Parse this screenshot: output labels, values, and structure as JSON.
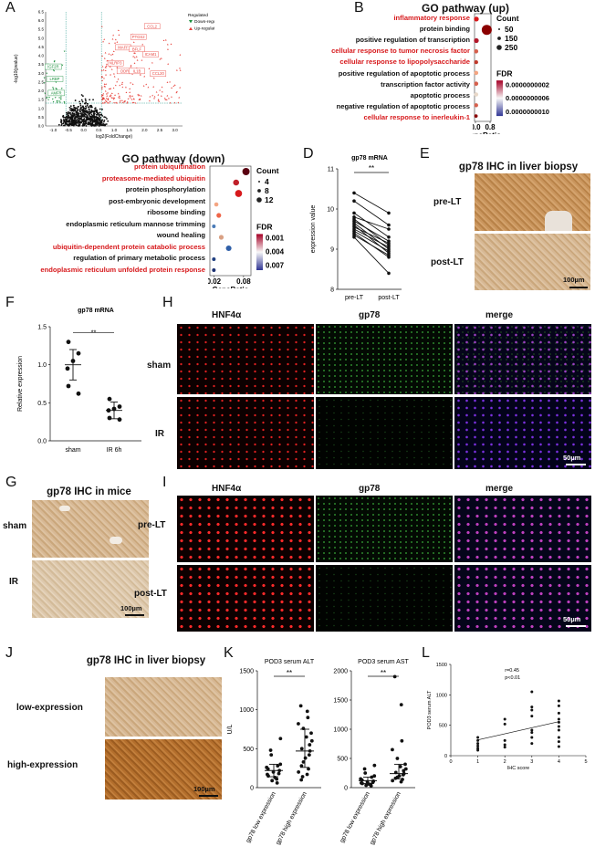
{
  "panels": {
    "A": "A",
    "B": "B",
    "C": "C",
    "D": "D",
    "E": "E",
    "F": "F",
    "G": "G",
    "H": "H",
    "I": "I",
    "J": "J",
    "K": "K",
    "L": "L"
  },
  "volcano": {
    "ylabel": "-log10(pvalue)",
    "xlabel": "log2(FoldChange)",
    "legend_title": "Regulated",
    "legend_down": "Down-regulated",
    "legend_up": "Up-regulated",
    "colors": {
      "down": "#1a8f3c",
      "up": "#e8403a",
      "ns": "#111111"
    },
    "x_ticks": [
      "-1.0",
      "-0.5",
      "0.0",
      "0.5",
      "1.0",
      "1.5",
      "2.0",
      "2.5",
      "3.0"
    ],
    "y_ticks": [
      "0.0",
      "0.5",
      "1.0",
      "1.5",
      "2.0",
      "2.5",
      "3.0",
      "3.5",
      "4.0",
      "4.5",
      "5.0",
      "5.5",
      "6.0",
      "6.5"
    ],
    "down_genes": [
      "IGF2R",
      "LRBP",
      "AMFR"
    ],
    "up_genes": [
      "CCL2",
      "PTGS2",
      "MAFF",
      "BFLF",
      "ICAM1",
      "NLRP3",
      "DDR",
      "IL1B",
      "CCL20"
    ]
  },
  "go_up": {
    "title": "GO pathway (up)",
    "terms": [
      {
        "label": "inflammatory response",
        "highlight": true,
        "ratio": 0.05,
        "count": 60,
        "fdr_color": "#d7191c"
      },
      {
        "label": "protein binding",
        "highlight": false,
        "ratio": 0.62,
        "count": 260,
        "fdr_color": "#8b0000"
      },
      {
        "label": "positive regulation of transcription",
        "highlight": false,
        "ratio": 0.05,
        "count": 60,
        "fdr_color": "#b2182b"
      },
      {
        "label": "cellular response to tumor necrosis factor",
        "highlight": true,
        "ratio": 0.04,
        "count": 45,
        "fdr_color": "#d6604d"
      },
      {
        "label": "cellular response to lipopolysaccharide",
        "highlight": true,
        "ratio": 0.04,
        "count": 40,
        "fdr_color": "#c0392b"
      },
      {
        "label": "positive regulation of apoptotic process",
        "highlight": false,
        "ratio": 0.04,
        "count": 45,
        "fdr_color": "#f4a582"
      },
      {
        "label": "transcription factor activity",
        "highlight": false,
        "ratio": 0.04,
        "count": 45,
        "fdr_color": "#d6604d"
      },
      {
        "label": "apoptotic process",
        "highlight": false,
        "ratio": 0.04,
        "count": 45,
        "fdr_color": "#e8d8c8"
      },
      {
        "label": "negative regulation of apoptotic process",
        "highlight": false,
        "ratio": 0.04,
        "count": 40,
        "fdr_color": "#d6604d"
      },
      {
        "label": "cellular response to inerleukin-1",
        "highlight": true,
        "ratio": 0.03,
        "count": 30,
        "fdr_color": "#8b0000"
      }
    ],
    "count_title": "Count",
    "count_levels": [
      "50",
      "150",
      "250"
    ],
    "fdr_title": "FDR",
    "fdr_levels": [
      "0.0000000002",
      "0.0000000006",
      "0.0000000010"
    ],
    "xlabel": "GeneRatio",
    "x_ticks": [
      "0.0",
      "0.8"
    ]
  },
  "go_down": {
    "title": "GO pathway (down)",
    "terms": [
      {
        "label": "protein ubiquitination",
        "highlight": true,
        "ratio": 0.085,
        "count": 12,
        "fdr_color": "#5a0010"
      },
      {
        "label": "proteasome-mediated ubiquitin",
        "highlight": true,
        "ratio": 0.065,
        "count": 8,
        "fdr_color": "#c0202a"
      },
      {
        "label": "protein phosphorylation",
        "highlight": false,
        "ratio": 0.07,
        "count": 11,
        "fdr_color": "#d7191c"
      },
      {
        "label": "post-embryonic development",
        "highlight": false,
        "ratio": 0.025,
        "count": 4,
        "fdr_color": "#f4a582"
      },
      {
        "label": "ribosome binding",
        "highlight": false,
        "ratio": 0.03,
        "count": 5,
        "fdr_color": "#ef6548"
      },
      {
        "label": "endoplasmic reticulum mannose trimming",
        "highlight": false,
        "ratio": 0.02,
        "count": 3,
        "fdr_color": "#4a7bb7"
      },
      {
        "label": "wound healing",
        "highlight": false,
        "ratio": 0.035,
        "count": 5,
        "fdr_color": "#d9a084"
      },
      {
        "label": "ubiquitin-dependent protein catabolic process",
        "highlight": true,
        "ratio": 0.05,
        "count": 7,
        "fdr_color": "#2f5fa8"
      },
      {
        "label": "regulation of primary metabolic process",
        "highlight": false,
        "ratio": 0.02,
        "count": 3,
        "fdr_color": "#1f3f80"
      },
      {
        "label": "endoplasmic reticulum unfolded protein response",
        "highlight": true,
        "ratio": 0.02,
        "count": 3,
        "fdr_color": "#1a2f70"
      }
    ],
    "count_title": "Count",
    "count_levels": [
      "4",
      "8",
      "12"
    ],
    "fdr_title": "FDR",
    "fdr_levels": [
      "0.001",
      "0.004",
      "0.007"
    ],
    "xlabel": "GeneRatio",
    "x_ticks": [
      "0.02",
      "0.08"
    ]
  },
  "panelD": {
    "title": "gp78 mRNA",
    "ylabel": "expression value",
    "sig": "**",
    "categories": [
      "pre-LT",
      "post-LT"
    ],
    "y_ticks": [
      "8",
      "9",
      "10",
      "11"
    ],
    "ylim": [
      8,
      11
    ],
    "pairs": [
      [
        10.4,
        9.9
      ],
      [
        10.2,
        9.6
      ],
      [
        9.9,
        9.3
      ],
      [
        9.8,
        9.5
      ],
      [
        9.75,
        9.1
      ],
      [
        9.7,
        9.2
      ],
      [
        9.65,
        9.0
      ],
      [
        9.6,
        8.9
      ],
      [
        9.55,
        9.15
      ],
      [
        9.5,
        9.05
      ],
      [
        9.45,
        8.95
      ],
      [
        9.4,
        8.8
      ],
      [
        9.35,
        8.85
      ],
      [
        9.3,
        8.4
      ]
    ]
  },
  "panelE": {
    "title": "gp78 IHC in liver biopsy",
    "rows": [
      "pre-LT",
      "post-LT"
    ],
    "scale": "100µm"
  },
  "panelF": {
    "title": "gp78 mRNA",
    "ylabel": "Relative expression",
    "sig": "**",
    "categories": [
      "sham",
      "IR 6h"
    ],
    "y_ticks": [
      "0.0",
      "0.5",
      "1.0",
      "1.5"
    ],
    "ylim": [
      0,
      1.5
    ],
    "sham": [
      1.3,
      1.15,
      1.05,
      0.95,
      0.72,
      0.62
    ],
    "ir": [
      0.55,
      0.45,
      0.42,
      0.4,
      0.3,
      0.28
    ],
    "sham_mean": 1.0,
    "sham_sd": 0.2,
    "ir_mean": 0.4,
    "ir_sd": 0.11
  },
  "panelG": {
    "title": "gp78 IHC in mice",
    "rows": [
      "sham",
      "IR"
    ],
    "scale": "100µm"
  },
  "panelH": {
    "cols": [
      "HNF4α",
      "gp78",
      "merge"
    ],
    "rows": [
      "sham",
      "IR"
    ],
    "scale": "50µm"
  },
  "panelI": {
    "cols": [
      "HNF4α",
      "gp78",
      "merge"
    ],
    "rows": [
      "pre-LT",
      "post-LT"
    ],
    "scale": "50µm"
  },
  "panelJ": {
    "title": "gp78 IHC in liver biopsy",
    "rows": [
      "low-expression",
      "high-expression"
    ],
    "scale": "100µm"
  },
  "panelK": {
    "left": {
      "title": "POD3 serum ALT",
      "ylabel": "U/L",
      "sig": "**",
      "y_ticks": [
        "0",
        "500",
        "1000",
        "1500"
      ],
      "ylim": [
        0,
        1500
      ],
      "categories": [
        "gp78 low expression",
        "gp78 high expression"
      ],
      "low": [
        630,
        480,
        420,
        300,
        280,
        260,
        240,
        220,
        200,
        180,
        170,
        150,
        130,
        110,
        90,
        60
      ],
      "high": [
        1050,
        980,
        900,
        820,
        760,
        700,
        650,
        600,
        550,
        500,
        470,
        420,
        380,
        330,
        280,
        240,
        200,
        170,
        140,
        100
      ],
      "low_median": 220,
      "low_q": [
        140,
        300
      ],
      "high_median": 470,
      "high_q": [
        260,
        750
      ]
    },
    "right": {
      "title": "POD3 serum AST",
      "sig": "**",
      "y_ticks": [
        "0",
        "500",
        "1000",
        "1500",
        "2000"
      ],
      "ylim": [
        0,
        2000
      ],
      "low": [
        380,
        320,
        250,
        200,
        180,
        150,
        130,
        110,
        100,
        90,
        80,
        70,
        60,
        50,
        40,
        30
      ],
      "high": [
        1900,
        1420,
        800,
        650,
        500,
        400,
        360,
        320,
        290,
        260,
        240,
        220,
        200,
        180,
        160,
        140,
        120,
        100
      ],
      "low_median": 120,
      "low_q": [
        70,
        180
      ],
      "high_median": 240,
      "high_q": [
        150,
        400
      ]
    }
  },
  "panelL": {
    "ylabel": "POD3 serum ALT",
    "xlabel": "IHC score",
    "annot_r": "r=0.45",
    "annot_p": "p<0.01",
    "x_ticks": [
      "0",
      "1",
      "2",
      "3",
      "4",
      "5"
    ],
    "y_ticks": [
      "0",
      "500",
      "1000",
      "1500"
    ],
    "xlim": [
      0,
      5
    ],
    "ylim": [
      0,
      1500
    ],
    "points": [
      [
        1,
        300
      ],
      [
        1,
        250
      ],
      [
        1,
        200
      ],
      [
        1,
        160
      ],
      [
        1,
        120
      ],
      [
        1,
        90
      ],
      [
        2,
        600
      ],
      [
        2,
        520
      ],
      [
        2,
        250
      ],
      [
        2,
        180
      ],
      [
        2,
        140
      ],
      [
        3,
        1050
      ],
      [
        3,
        800
      ],
      [
        3,
        750
      ],
      [
        3,
        650
      ],
      [
        3,
        420
      ],
      [
        3,
        380
      ],
      [
        3,
        300
      ],
      [
        3,
        200
      ],
      [
        4,
        900
      ],
      [
        4,
        820
      ],
      [
        4,
        700
      ],
      [
        4,
        600
      ],
      [
        4,
        550
      ],
      [
        4,
        480
      ],
      [
        4,
        420
      ],
      [
        4,
        300
      ],
      [
        4,
        230
      ],
      [
        4,
        150
      ]
    ],
    "fit": [
      [
        1,
        260
      ],
      [
        4,
        560
      ]
    ]
  }
}
